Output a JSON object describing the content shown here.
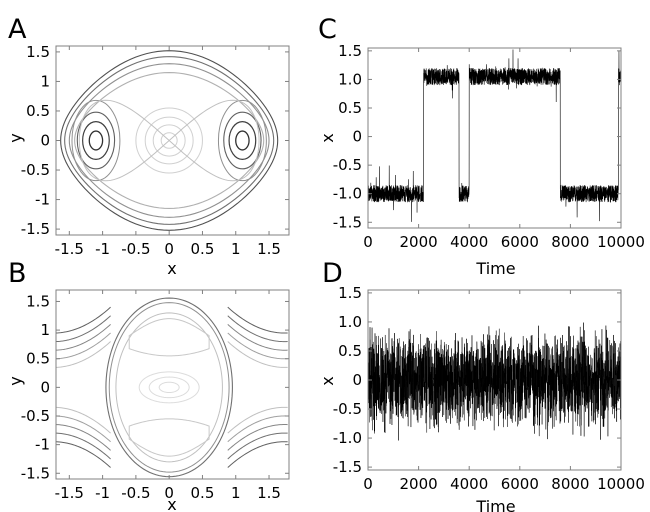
{
  "chart_data": [
    {
      "panel": "A",
      "type": "contour",
      "title": "",
      "xlabel": "x",
      "ylabel": "y",
      "xlim": [
        -1.7,
        1.8
      ],
      "ylim": [
        -1.6,
        1.6
      ],
      "xticks": [
        "-1.5",
        "-1",
        "-0.5",
        "0",
        "0.5",
        "1",
        "1.5"
      ],
      "yticks": [
        "1.5",
        "1",
        "0.5",
        "0",
        "-0.5",
        "-1",
        "-1.5"
      ],
      "grid": false,
      "description_of_levels": "closed orbits around two centers near x=-1.1 and x=1.1 plus central family"
    },
    {
      "panel": "B",
      "type": "contour",
      "title": "",
      "xlabel": "x",
      "ylabel": "y",
      "xlim": [
        -1.7,
        1.8
      ],
      "ylim": [
        -1.6,
        1.7
      ],
      "xticks": [
        "-1.5",
        "-1",
        "-0.5",
        "0",
        "0.5",
        "1",
        "1.5"
      ],
      "yticks": [
        "1.5",
        "1",
        "0.5",
        "0",
        "-0.5",
        "-1",
        "-1.5"
      ],
      "grid": false
    },
    {
      "panel": "C",
      "type": "line",
      "title": "",
      "xlabel": "Time",
      "ylabel": "x",
      "xlim": [
        0,
        10000
      ],
      "ylim": [
        -1.6,
        1.55
      ],
      "xticks": [
        "0",
        "2000",
        "4000",
        "6000",
        "8000",
        "10000"
      ],
      "yticks": [
        "1.5",
        "1.0",
        "0.5",
        "0",
        "-0.5",
        "-1.0",
        "-1.5"
      ],
      "segments": [
        {
          "t_start": 0,
          "t_end": 2200,
          "level": -1.0
        },
        {
          "t_start": 2200,
          "t_end": 3600,
          "level": 1.05
        },
        {
          "t_start": 3600,
          "t_end": 4000,
          "level": -1.0
        },
        {
          "t_start": 4000,
          "t_end": 7600,
          "level": 1.05
        },
        {
          "t_start": 7600,
          "t_end": 9900,
          "level": -1.0
        },
        {
          "t_start": 9900,
          "t_end": 10000,
          "level": 1.05
        }
      ],
      "noise_amplitude": 0.15
    },
    {
      "panel": "D",
      "type": "line",
      "title": "",
      "xlabel": "Time",
      "ylabel": "x",
      "xlim": [
        0,
        10000
      ],
      "ylim": [
        -1.55,
        1.55
      ],
      "xticks": [
        "0",
        "2000",
        "4000",
        "6000",
        "8000",
        "10000"
      ],
      "yticks": [
        "1.5",
        "1.0",
        "0.5",
        "0",
        "-0.5",
        "-1.0",
        "-1.5"
      ],
      "mean": 0.0,
      "noise_amplitude": 0.45
    }
  ]
}
